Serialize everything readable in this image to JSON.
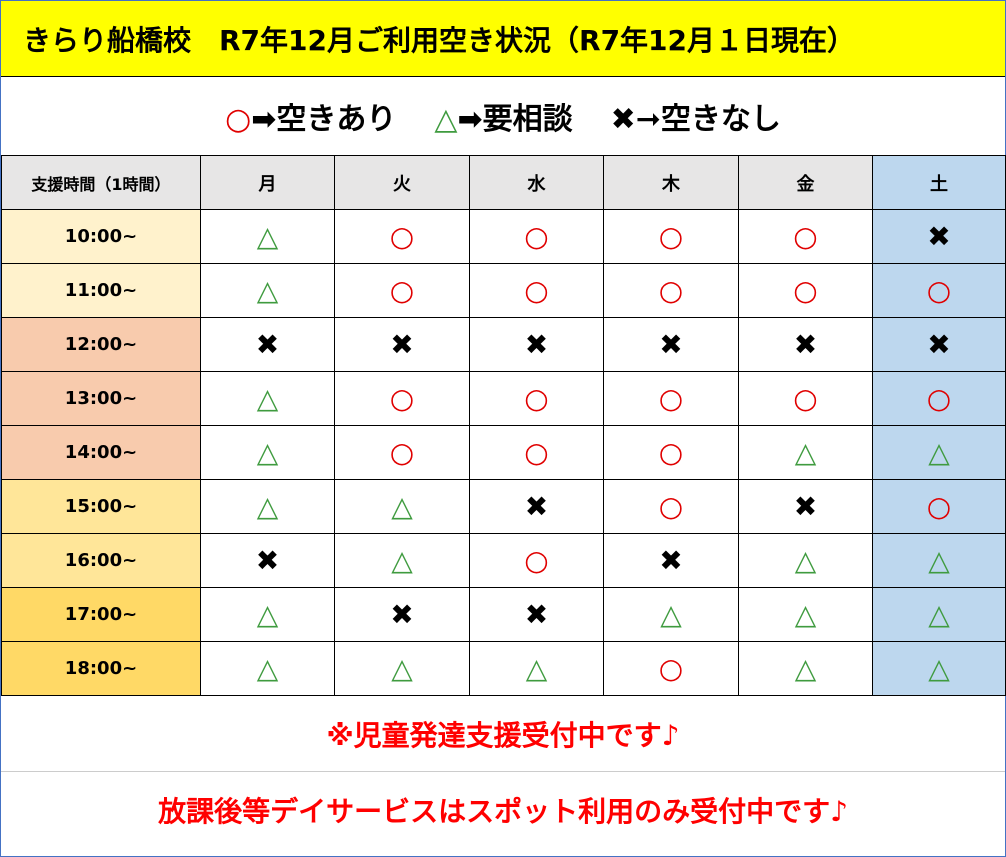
{
  "header": {
    "title": "きらり船橋校　R7年12月ご利用空き状況（R7年12月１日現在）"
  },
  "legend": [
    {
      "symbol": "○",
      "text": "➡空きあり"
    },
    {
      "symbol": "△",
      "text": "➡要相談"
    },
    {
      "symbol": "✖",
      "text": "➞空きなし"
    }
  ],
  "table": {
    "columns": [
      "支援時間（1時間）",
      "月",
      "火",
      "水",
      "木",
      "金",
      "土"
    ],
    "rows": [
      [
        "10:00~",
        "△",
        "○",
        "○",
        "○",
        "○",
        "✖"
      ],
      [
        "11:00~",
        "△",
        "○",
        "○",
        "○",
        "○",
        "○"
      ],
      [
        "12:00~",
        "✖",
        "✖",
        "✖",
        "✖",
        "✖",
        "✖"
      ],
      [
        "13:00~",
        "△",
        "○",
        "○",
        "○",
        "○",
        "○"
      ],
      [
        "14:00~",
        "△",
        "○",
        "○",
        "○",
        "△",
        "△"
      ],
      [
        "15:00~",
        "△",
        "△",
        "✖",
        "○",
        "✖",
        "○"
      ],
      [
        "16:00~",
        "✖",
        "△",
        "○",
        "✖",
        "△",
        "△"
      ],
      [
        "17:00~",
        "△",
        "✖",
        "✖",
        "△",
        "△",
        "△"
      ],
      [
        "18:00~",
        "△",
        "△",
        "△",
        "○",
        "△",
        "△"
      ]
    ]
  },
  "notes": [
    "※児童発達支援受付中です♪",
    "放課後等デイサービスはスポット利用のみ受付中です♪"
  ]
}
